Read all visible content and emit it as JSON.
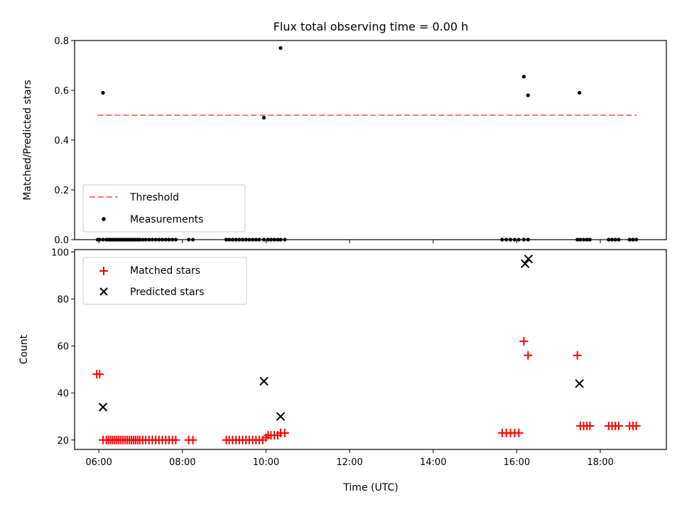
{
  "chart_data": [
    {
      "type": "scatter",
      "title": "Flux total observing time = 0.00 h",
      "xlabel": "",
      "ylabel": "Matched/Predicted stars",
      "xlim": [
        5.42,
        19.58
      ],
      "ylim": [
        0,
        0.8
      ],
      "yticks": [
        0.0,
        0.2,
        0.4,
        0.6,
        0.8
      ],
      "ytick_labels": [
        "0.0",
        "0.2",
        "0.4",
        "0.6",
        "0.8"
      ],
      "xticks": [
        6,
        8,
        10,
        12,
        14,
        16,
        18
      ],
      "legend_placement": "lower-left",
      "grid": false,
      "series": [
        {
          "name": "Threshold",
          "kind": "line",
          "style": "dashed",
          "color": "#ff7777",
          "x": [
            5.97,
            18.87
          ],
          "y": [
            0.5,
            0.5
          ]
        },
        {
          "name": "Measurements",
          "kind": "scatter",
          "marker": "dot",
          "color": "#000000",
          "x": [
            5.97,
            6.02,
            6.1,
            6.18,
            6.23,
            6.28,
            6.33,
            6.38,
            6.43,
            6.48,
            6.53,
            6.58,
            6.63,
            6.68,
            6.73,
            6.78,
            6.83,
            6.88,
            6.93,
            6.98,
            7.05,
            7.12,
            7.2,
            7.28,
            7.36,
            7.44,
            7.52,
            7.6,
            7.68,
            7.76,
            7.84,
            8.15,
            8.25,
            9.05,
            9.12,
            9.2,
            9.28,
            9.36,
            9.44,
            9.52,
            9.6,
            9.68,
            9.76,
            9.84,
            9.95,
            10.05,
            10.12,
            10.2,
            10.28,
            10.35,
            10.45,
            15.65,
            15.75,
            15.85,
            15.95,
            16.05,
            16.17,
            16.27,
            17.45,
            17.52,
            17.6,
            17.68,
            17.75,
            18.2,
            18.28,
            18.36,
            18.44,
            18.7,
            18.78,
            18.86,
            6.1,
            9.95,
            10.35,
            16.17,
            16.27,
            17.5
          ],
          "y": [
            0,
            0,
            0,
            0,
            0,
            0,
            0,
            0,
            0,
            0,
            0,
            0,
            0,
            0,
            0,
            0,
            0,
            0,
            0,
            0,
            0,
            0,
            0,
            0,
            0,
            0,
            0,
            0,
            0,
            0,
            0,
            0,
            0,
            0,
            0,
            0,
            0,
            0,
            0,
            0,
            0,
            0,
            0,
            0,
            0,
            0,
            0,
            0,
            0,
            0,
            0,
            0,
            0,
            0,
            0,
            0,
            0,
            0,
            0,
            0,
            0,
            0,
            0,
            0,
            0,
            0,
            0,
            0,
            0,
            0,
            0.59,
            0.49,
            0.77,
            0.655,
            0.58,
            0.59
          ]
        }
      ]
    },
    {
      "type": "scatter",
      "title": "",
      "xlabel": "Time (UTC)",
      "ylabel": "Count",
      "xlim": [
        5.42,
        19.58
      ],
      "ylim": [
        16,
        101
      ],
      "yticks": [
        20,
        40,
        60,
        80,
        100
      ],
      "ytick_labels": [
        "20",
        "40",
        "60",
        "80",
        "100"
      ],
      "xticks": [
        6,
        8,
        10,
        12,
        14,
        16,
        18
      ],
      "xtick_labels": [
        "06:00",
        "08:00",
        "10:00",
        "12:00",
        "14:00",
        "16:00",
        "18:00"
      ],
      "legend_placement": "upper-left",
      "grid": false,
      "series": [
        {
          "name": "Matched stars",
          "kind": "scatter",
          "marker": "plus",
          "color": "#ff0000",
          "x": [
            5.95,
            6.02,
            6.1,
            6.18,
            6.23,
            6.28,
            6.33,
            6.38,
            6.43,
            6.48,
            6.53,
            6.58,
            6.63,
            6.68,
            6.73,
            6.78,
            6.83,
            6.88,
            6.93,
            6.98,
            7.05,
            7.12,
            7.2,
            7.28,
            7.36,
            7.44,
            7.52,
            7.6,
            7.68,
            7.76,
            7.84,
            8.15,
            8.25,
            9.05,
            9.12,
            9.2,
            9.28,
            9.36,
            9.44,
            9.52,
            9.6,
            9.68,
            9.76,
            9.84,
            9.92,
            10.0,
            10.05,
            10.12,
            10.2,
            10.28,
            10.35,
            10.45,
            15.65,
            15.75,
            15.85,
            15.95,
            16.05,
            16.17,
            16.27,
            17.45,
            17.52,
            17.6,
            17.68,
            17.75,
            18.2,
            18.28,
            18.36,
            18.44,
            18.7,
            18.78,
            18.86
          ],
          "y": [
            48,
            48,
            20,
            20,
            20,
            20,
            20,
            20,
            20,
            20,
            20,
            20,
            20,
            20,
            20,
            20,
            20,
            20,
            20,
            20,
            20,
            20,
            20,
            20,
            20,
            20,
            20,
            20,
            20,
            20,
            20,
            20,
            20,
            20,
            20,
            20,
            20,
            20,
            20,
            20,
            20,
            20,
            20,
            20,
            20,
            21,
            22,
            22,
            22,
            22,
            23,
            23,
            23,
            23,
            23,
            23,
            23,
            62,
            56,
            56,
            26,
            26,
            26,
            26,
            26,
            26,
            26,
            26,
            26,
            26,
            26
          ]
        },
        {
          "name": "Predicted stars",
          "kind": "scatter",
          "marker": "x",
          "color": "#000000",
          "x": [
            6.1,
            9.95,
            10.35,
            16.2,
            16.28,
            17.5
          ],
          "y": [
            34,
            45,
            30,
            95,
            97,
            44
          ]
        }
      ]
    }
  ]
}
